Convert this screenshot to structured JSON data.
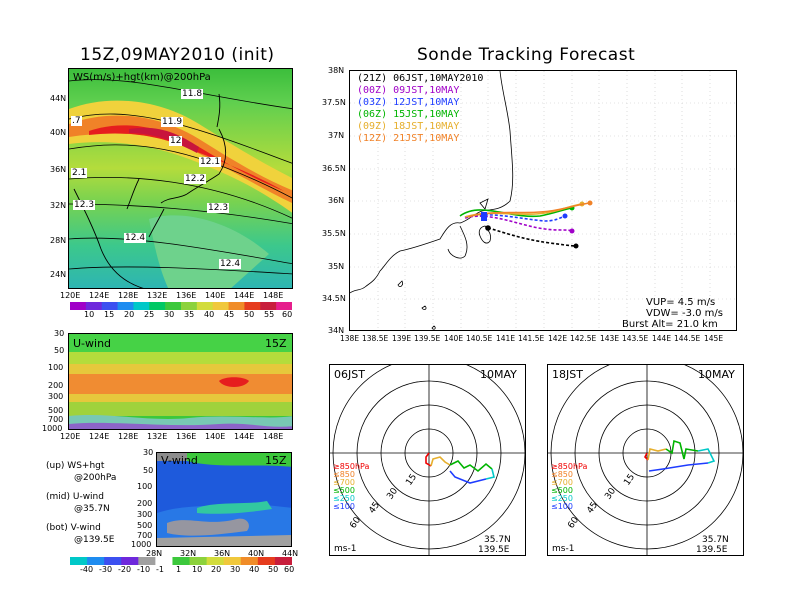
{
  "left_title": "15Z,09MAY2010 (init)",
  "right_title": "Sonde Tracking Forecast",
  "map_panel": {
    "label": "WS(m/s)+hgt(km)@200hPa",
    "lat_ticks": [
      "44N",
      "40N",
      "36N",
      "32N",
      "28N",
      "24N"
    ],
    "lon_ticks": [
      "120E",
      "124E",
      "128E",
      "132E",
      "136E",
      "140E",
      "144E",
      "148E"
    ],
    "contour_labels": [
      "11.8",
      "11.9",
      "12",
      "12.1",
      "12.2",
      "12.3",
      "12.4",
      "12.4",
      ".7",
      "2.1",
      "12.3"
    ],
    "colorbar_ticks": [
      "10",
      "15",
      "20",
      "25",
      "30",
      "35",
      "40",
      "45",
      "50",
      "55",
      "60"
    ]
  },
  "u_panel": {
    "label": "U-wind",
    "time": "15Z",
    "p_ticks": [
      "30",
      "50",
      "100",
      "200",
      "300",
      "500",
      "700",
      "1000"
    ],
    "lon_ticks": [
      "120E",
      "124E",
      "128E",
      "132E",
      "136E",
      "140E",
      "144E",
      "148E"
    ]
  },
  "v_panel": {
    "label": "V-wind",
    "time": "15Z",
    "p_ticks": [
      "30",
      "50",
      "100",
      "200",
      "300",
      "500",
      "700",
      "1000"
    ],
    "lat_ticks": [
      "28N",
      "32N",
      "36N",
      "40N",
      "44N"
    ]
  },
  "legend_text": {
    "up_1": "(up) WS+hgt",
    "up_2": "@200hPa",
    "mid_1": "(mid) U-wind",
    "mid_2": "@35.7N",
    "bot_1": "(bot) V-wind",
    "bot_2": "@139.5E"
  },
  "bottom_colorbar_ticks": [
    "-40",
    "-30",
    "-20",
    "-10",
    "-1",
    "1",
    "10",
    "20",
    "30",
    "40",
    "50",
    "60"
  ],
  "track_panel": {
    "lat_ticks": [
      "38N",
      "37.5N",
      "37N",
      "36.5N",
      "36N",
      "35.5N",
      "35N",
      "34.5N",
      "34N"
    ],
    "lon_ticks": [
      "138E",
      "138.5E",
      "139E",
      "139.5E",
      "140E",
      "140.5E",
      "141E",
      "141.5E",
      "142E",
      "142.5E",
      "143E",
      "143.5E",
      "144E",
      "144.5E",
      "145E"
    ],
    "entries": [
      {
        "utc": "(21Z)",
        "jst": "06JST,10MAY2010",
        "color": "#000000"
      },
      {
        "utc": "(00Z)",
        "jst": "09JST,10MAY",
        "color": "#a000c8"
      },
      {
        "utc": "(03Z)",
        "jst": "12JST,10MAY",
        "color": "#1e3cff"
      },
      {
        "utc": "(06Z)",
        "jst": "15JST,10MAY",
        "color": "#00b400"
      },
      {
        "utc": "(09Z)",
        "jst": "18JST,10MAY",
        "color": "#e6af2d"
      },
      {
        "utc": "(12Z)",
        "jst": "21JST,10MAY",
        "color": "#f08228"
      }
    ],
    "vup": "VUP= 4.5 m/s",
    "vdw": "VDW= -3.0 m/s",
    "burst": "Burst Alt= 21.0 km"
  },
  "hodograph_06": {
    "time": "06JST",
    "date": "10MAY",
    "ring_labels": [
      "15",
      "30",
      "45",
      "60"
    ],
    "levels": [
      "≥850hPa",
      "≤850",
      "≤700",
      "≤500",
      "≤250",
      "≤100"
    ],
    "level_colors": [
      "#f00000",
      "#f08228",
      "#e6af2d",
      "#00b400",
      "#00c8c8",
      "#1e3cff"
    ],
    "lat": "35.7N",
    "lon": "139.5E",
    "unit": "ms-1"
  },
  "hodograph_18": {
    "time": "18JST",
    "date": "10MAY",
    "ring_labels": [
      "15",
      "30",
      "45",
      "60"
    ],
    "levels": [
      "≥850hPa",
      "≤850",
      "≤700",
      "≤500",
      "≤250",
      "≤100"
    ],
    "level_colors": [
      "#f00000",
      "#f08228",
      "#e6af2d",
      "#00b400",
      "#00c8c8",
      "#1e3cff"
    ],
    "lat": "35.7N",
    "lon": "139.5E",
    "unit": "ms-1"
  }
}
